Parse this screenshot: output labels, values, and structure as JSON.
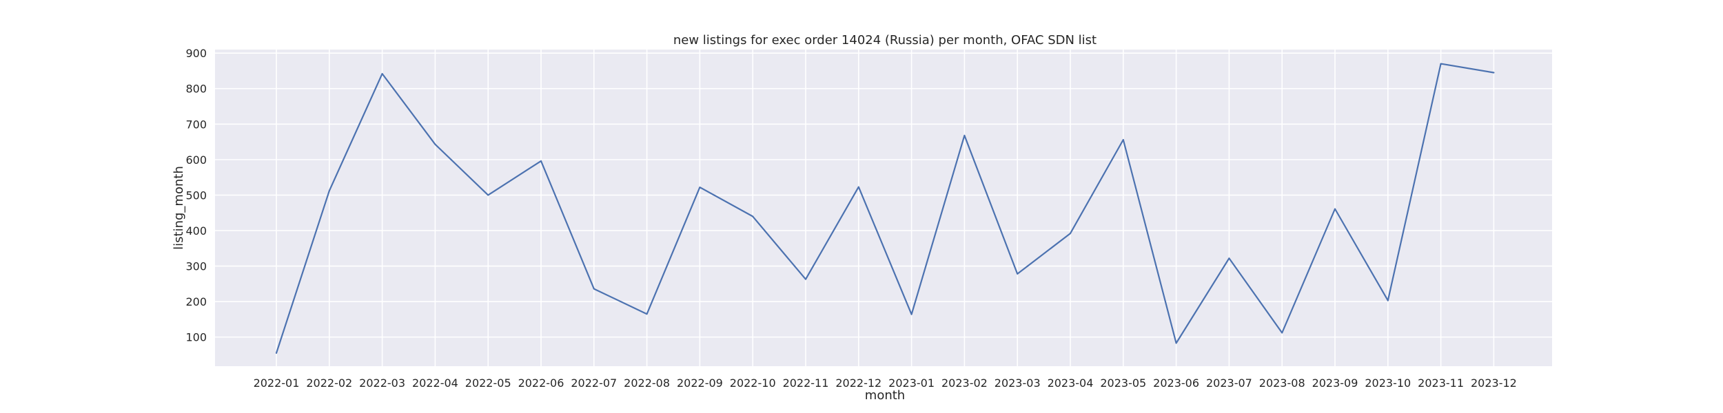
{
  "chart_data": {
    "type": "line",
    "title": "new listings for exec order 14024 (Russia) per month, OFAC SDN list",
    "xlabel": "month",
    "ylabel": "listing_month",
    "categories": [
      "2022-01",
      "2022-02",
      "2022-03",
      "2022-04",
      "2022-05",
      "2022-06",
      "2022-07",
      "2022-08",
      "2022-09",
      "2022-10",
      "2022-11",
      "2022-12",
      "2023-01",
      "2023-02",
      "2023-03",
      "2023-04",
      "2023-05",
      "2023-06",
      "2023-07",
      "2023-08",
      "2023-09",
      "2023-10",
      "2023-11",
      "2023-12"
    ],
    "series": [
      {
        "values": [
          55,
          512,
          842,
          643,
          500,
          596,
          236,
          165,
          522,
          440,
          263,
          523,
          164,
          668,
          278,
          392,
          656,
          83,
          322,
          112,
          461,
          203,
          870,
          845
        ],
        "color": "#4c72b0"
      }
    ],
    "yticks": [
      100,
      200,
      300,
      400,
      500,
      600,
      700,
      800,
      900
    ],
    "ylim": [
      18,
      910
    ],
    "grid": true,
    "background": "#eaeaf2"
  }
}
